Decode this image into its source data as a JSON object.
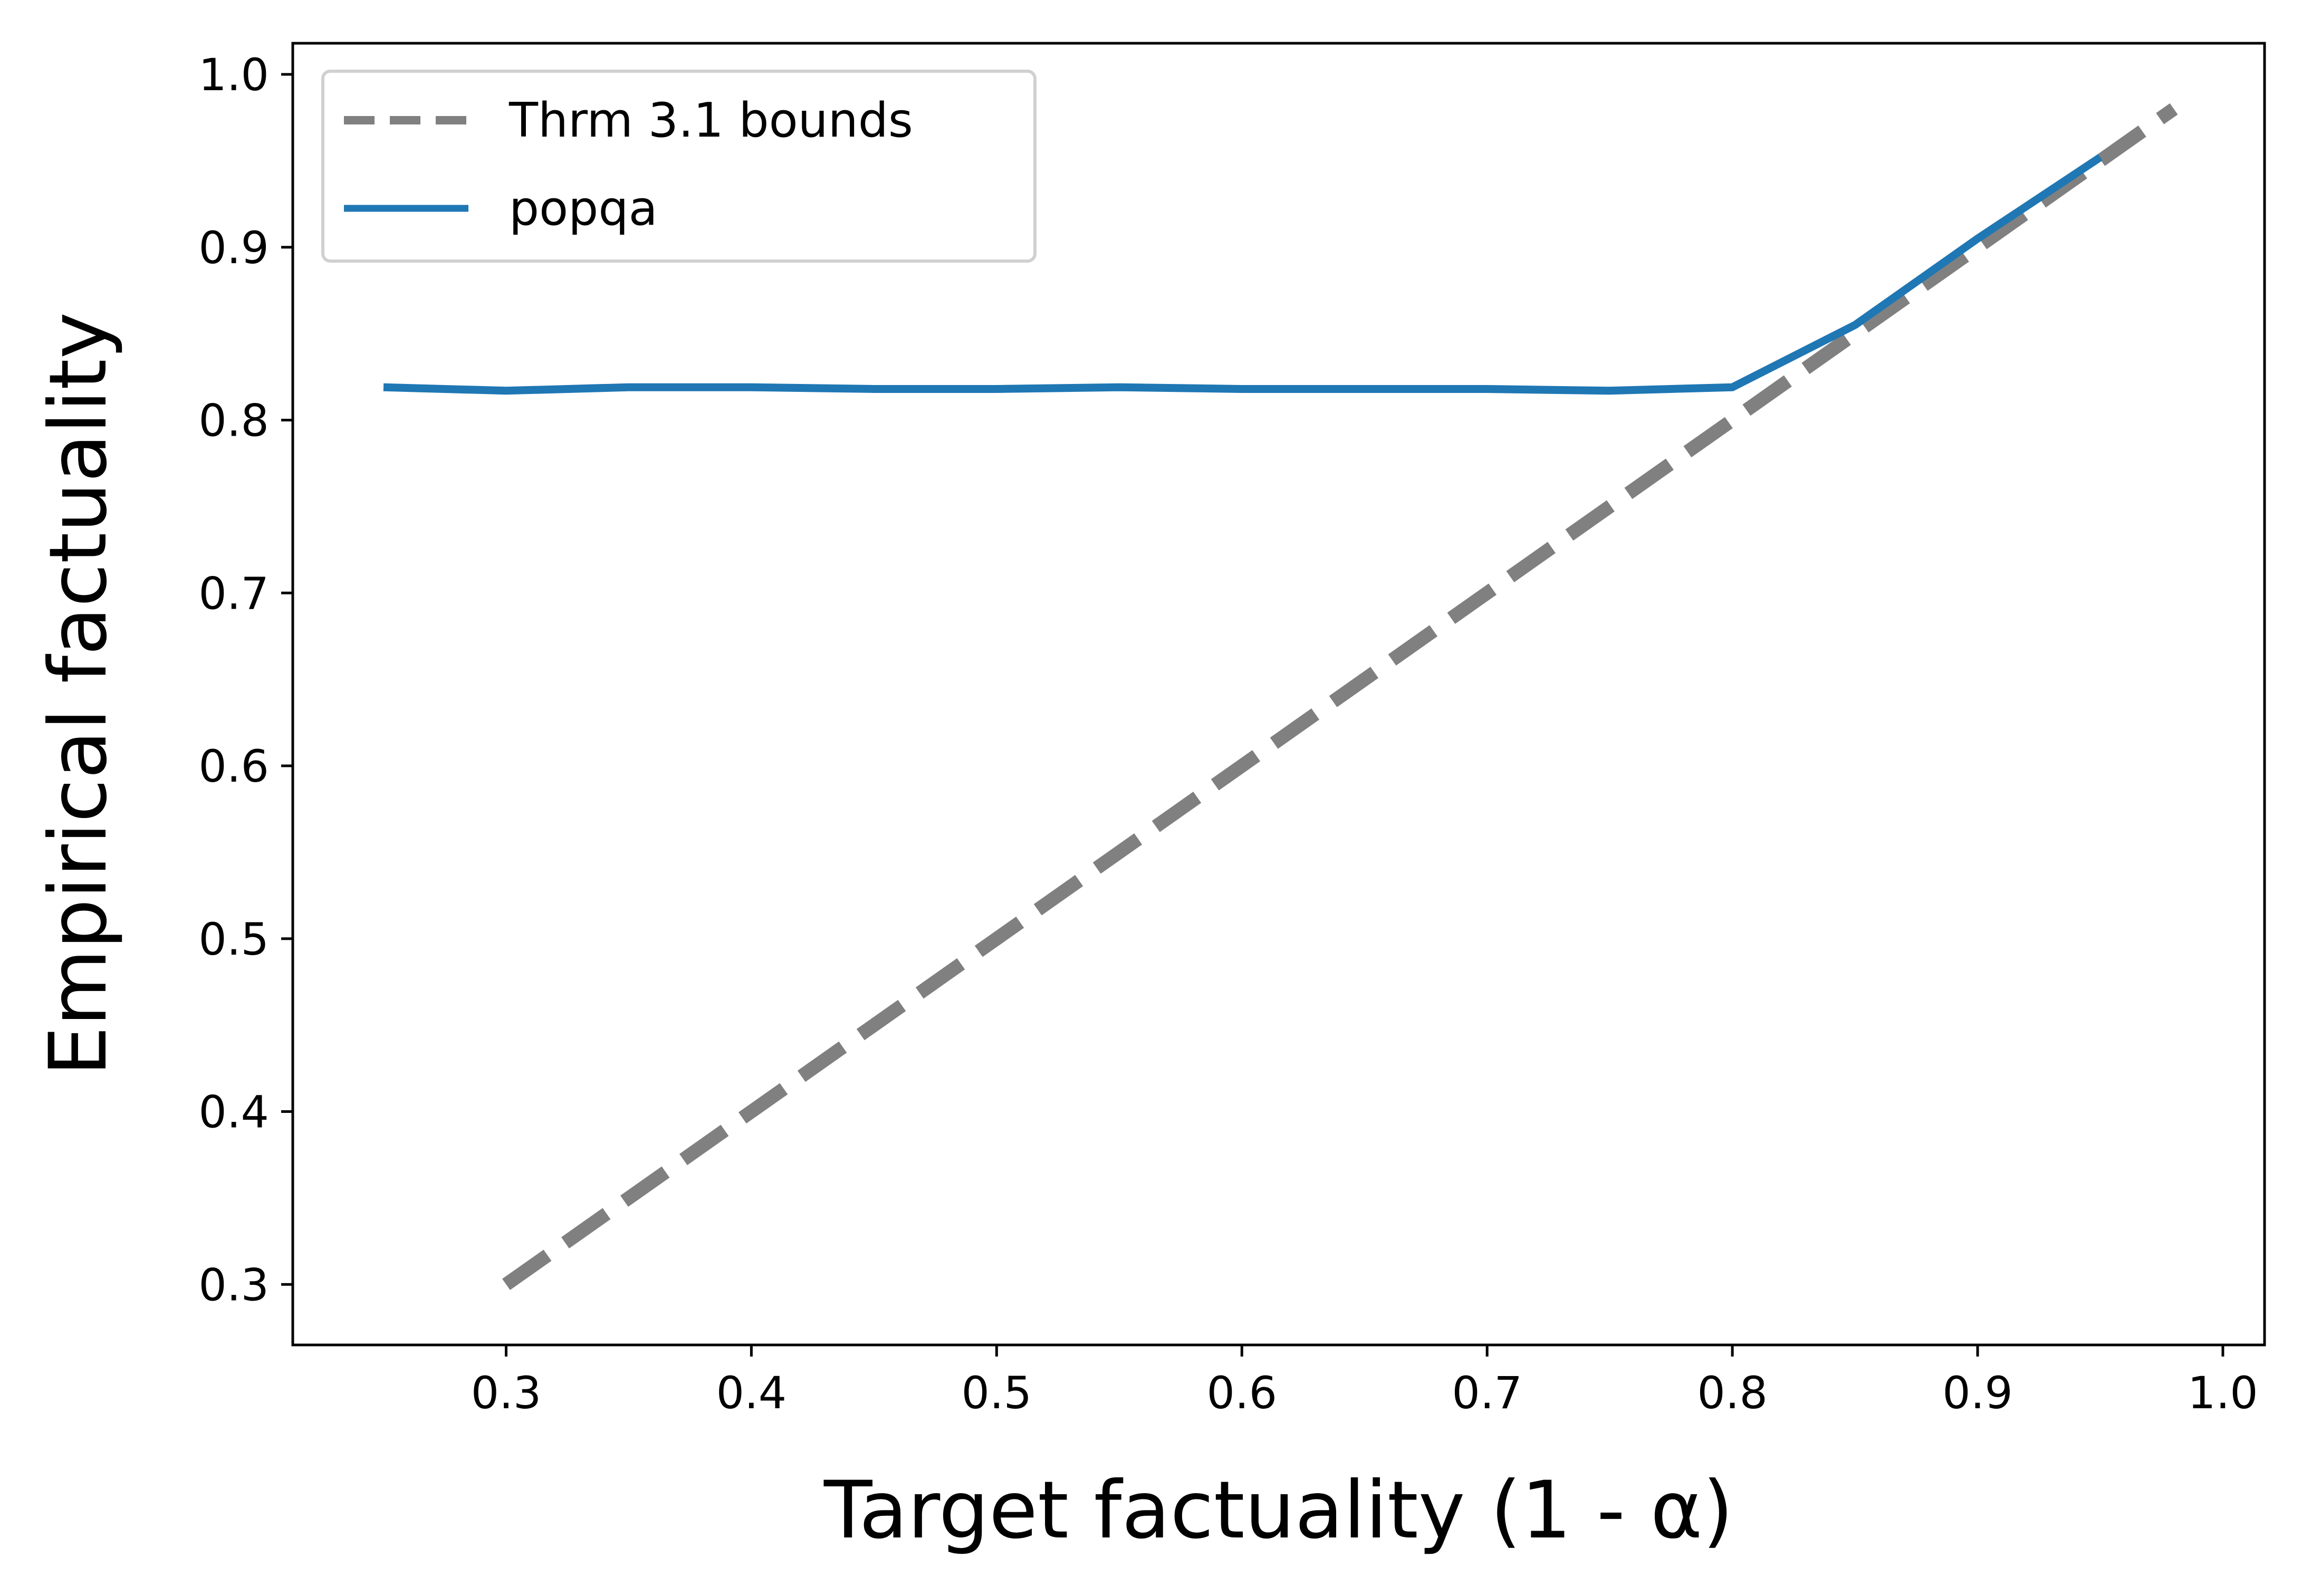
{
  "chart_data": {
    "type": "line",
    "title": "",
    "xlabel": "Target factuality (1 - α)",
    "ylabel": "Empirical factuality",
    "xlim": [
      0.213,
      1.017
    ],
    "ylim": [
      0.265,
      1.018
    ],
    "xticks": [
      "0.3",
      "0.4",
      "0.5",
      "0.6",
      "0.7",
      "0.8",
      "0.9",
      "1.0"
    ],
    "yticks": [
      "0.3",
      "0.4",
      "0.5",
      "0.6",
      "0.7",
      "0.8",
      "0.9",
      "1.0"
    ],
    "grid": false,
    "legend_position": "upper-left",
    "series": [
      {
        "name": "Thrm 3.1 bounds",
        "style": "dashed",
        "color": "#808080",
        "x": [
          0.3,
          0.98
        ],
        "y": [
          0.3,
          0.98
        ]
      },
      {
        "name": "popqa",
        "style": "solid",
        "color": "#1f77b4",
        "x": [
          0.25,
          0.3,
          0.35,
          0.4,
          0.45,
          0.5,
          0.55,
          0.6,
          0.65,
          0.7,
          0.75,
          0.8,
          0.85,
          0.9,
          0.95
        ],
        "y": [
          0.819,
          0.817,
          0.819,
          0.819,
          0.818,
          0.818,
          0.819,
          0.818,
          0.818,
          0.818,
          0.817,
          0.819,
          0.855,
          0.905,
          0.952
        ]
      }
    ]
  }
}
